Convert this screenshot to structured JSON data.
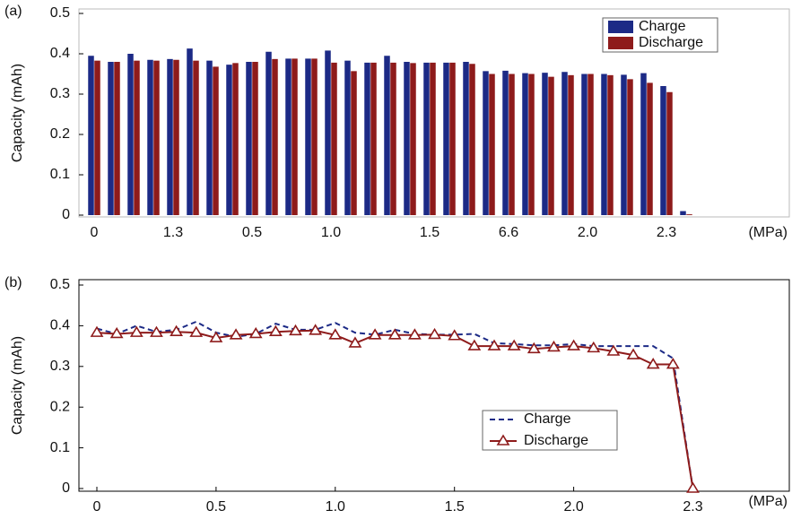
{
  "chart_data": [
    {
      "type": "bar",
      "label": "(a)",
      "ylabel": "Capacity (mAh)",
      "xlabel": "(MPa)",
      "categories": [
        "0",
        null,
        null,
        null,
        "1.3",
        null,
        null,
        null,
        "0.5",
        null,
        null,
        null,
        "1.0",
        null,
        null,
        null,
        null,
        "1.5",
        null,
        null,
        null,
        "6.6",
        null,
        null,
        null,
        "2.0",
        null,
        null,
        null,
        "2.3",
        null
      ],
      "series": [
        {
          "name": "Charge",
          "color": "#1c2a86",
          "values": [
            0.395,
            0.38,
            0.4,
            0.385,
            0.387,
            0.413,
            0.383,
            0.373,
            0.38,
            0.405,
            0.388,
            0.388,
            0.408,
            0.383,
            0.378,
            0.395,
            0.38,
            0.378,
            0.378,
            0.38,
            0.357,
            0.358,
            0.352,
            0.353,
            0.355,
            0.35,
            0.35,
            0.348,
            0.352,
            0.32,
            0.01
          ]
        },
        {
          "name": "Discharge",
          "color": "#8e1b1b",
          "values": [
            0.383,
            0.38,
            0.383,
            0.383,
            0.385,
            0.383,
            0.368,
            0.377,
            0.38,
            0.387,
            0.388,
            0.388,
            0.378,
            0.357,
            0.378,
            0.378,
            0.377,
            0.378,
            0.378,
            0.375,
            0.35,
            0.35,
            0.35,
            0.343,
            0.347,
            0.35,
            0.347,
            0.337,
            0.328,
            0.305,
            0.002
          ]
        }
      ],
      "ylim": [
        0,
        0.5
      ],
      "yticks": [
        0,
        0.1,
        0.2,
        0.3,
        0.4,
        0.5
      ],
      "legend": "upper right"
    },
    {
      "type": "line",
      "label": "(b)",
      "ylabel": "Capacity (mAh)",
      "xlabel": "(MPa)",
      "categories": [
        "0",
        null,
        null,
        null,
        null,
        null,
        "0.5",
        null,
        null,
        null,
        null,
        null,
        "1.0",
        null,
        null,
        null,
        null,
        null,
        "1.5",
        null,
        null,
        null,
        null,
        null,
        "2.0",
        null,
        null,
        null,
        null,
        null,
        "2.3"
      ],
      "series": [
        {
          "name": "Charge",
          "color": "#1c2a86",
          "values": [
            0.393,
            0.38,
            0.4,
            0.385,
            0.39,
            0.41,
            0.383,
            0.373,
            0.38,
            0.405,
            0.39,
            0.39,
            0.407,
            0.383,
            0.378,
            0.39,
            0.38,
            0.378,
            0.378,
            0.38,
            0.357,
            0.355,
            0.352,
            0.352,
            0.355,
            0.35,
            0.35,
            0.35,
            0.35,
            0.32,
            0
          ]
        },
        {
          "name": "Discharge",
          "color": "#8e1b1b",
          "values": [
            0.383,
            0.38,
            0.383,
            0.383,
            0.385,
            0.383,
            0.37,
            0.377,
            0.38,
            0.385,
            0.387,
            0.388,
            0.377,
            0.357,
            0.377,
            0.377,
            0.377,
            0.378,
            0.375,
            0.35,
            0.35,
            0.35,
            0.343,
            0.347,
            0.35,
            0.345,
            0.337,
            0.328,
            0.305,
            0.305,
            0
          ]
        }
      ],
      "ylim": [
        0,
        0.5
      ],
      "yticks": [
        0,
        0.1,
        0.2,
        0.3,
        0.4,
        0.5
      ],
      "legend": "lower center"
    }
  ]
}
